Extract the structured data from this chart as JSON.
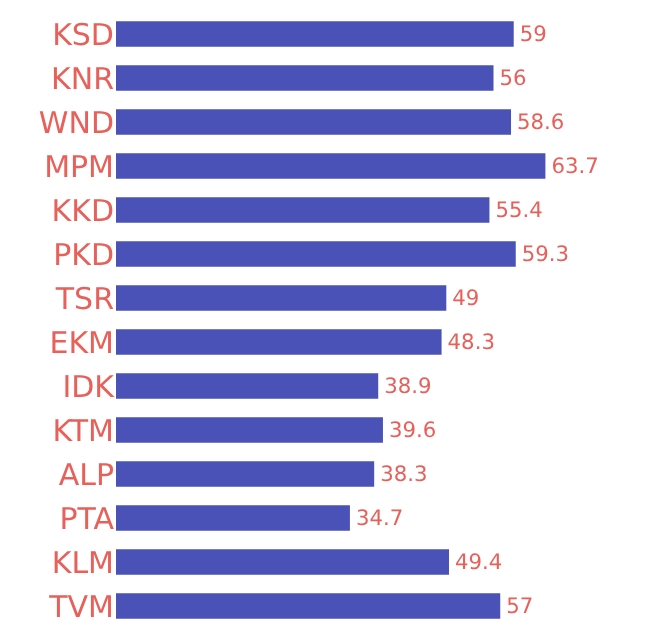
{
  "chart_data": {
    "type": "bar",
    "orientation": "horizontal",
    "categories": [
      "KSD",
      "KNR",
      "WND",
      "MPM",
      "KKD",
      "PKD",
      "TSR",
      "EKM",
      "IDK",
      "KTM",
      "ALP",
      "PTA",
      "KLM",
      "TVM"
    ],
    "values": [
      59,
      56,
      58.6,
      63.7,
      55.4,
      59.3,
      49,
      48.3,
      38.9,
      39.6,
      38.3,
      34.7,
      49.4,
      57
    ],
    "color": "#4a52b8",
    "data_labels": true,
    "tick_labels": "y"
  }
}
